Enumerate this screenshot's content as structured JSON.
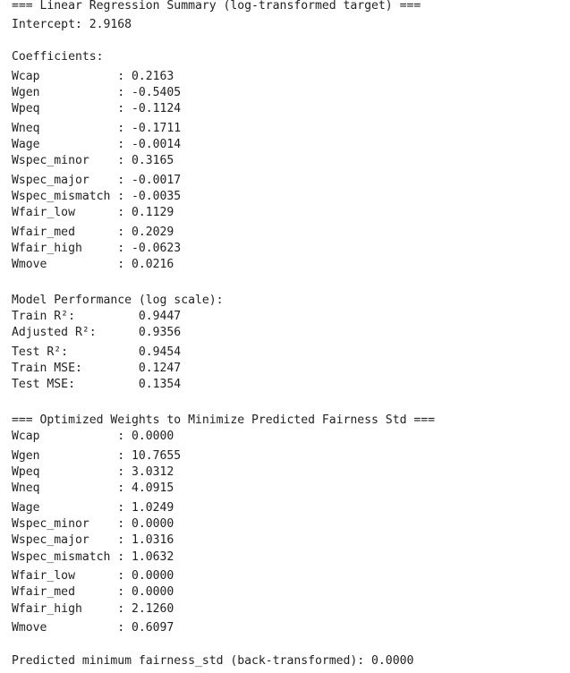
{
  "lines": {
    "header1": "=== Linear Regression Summary (log-transformed target) ===",
    "intercept": "Intercept: 2.9168",
    "coef_header": "Coefficients:",
    "c_wcap": "Wcap           : 0.2163",
    "c_wgen": "Wgen           : -0.5405",
    "c_wpeq": "Wpeq           : -0.1124",
    "c_wneq": "Wneq           : -0.1711",
    "c_wage": "Wage           : -0.0014",
    "c_wspec_minor": "Wspec_minor    : 0.3165",
    "c_wspec_major": "Wspec_major    : -0.0017",
    "c_wspec_mismatch": "Wspec_mismatch : -0.0035",
    "c_wfair_low": "Wfair_low      : 0.1129",
    "c_wfair_med": "Wfair_med      : 0.2029",
    "c_wfair_high": "Wfair_high     : -0.0623",
    "c_wmove": "Wmove          : 0.0216",
    "perf_header": "Model Performance (log scale):",
    "train_r2": "Train R²:         0.9447",
    "adj_r2": "Adjusted R²:      0.9356",
    "test_r2": "Test R²:          0.9454",
    "train_mse": "Train MSE:        0.1247",
    "test_mse": "Test MSE:         0.1354",
    "header2": "=== Optimized Weights to Minimize Predicted Fairness Std ===",
    "o_wcap": "Wcap           : 0.0000",
    "o_wgen": "Wgen           : 10.7655",
    "o_wpeq": "Wpeq           : 3.0312",
    "o_wneq": "Wneq           : 4.0915",
    "o_wage": "Wage           : 1.0249",
    "o_wspec_minor": "Wspec_minor    : 0.0000",
    "o_wspec_major": "Wspec_major    : 1.0316",
    "o_wspec_mismatch": "Wspec_mismatch : 1.0632",
    "o_wfair_low": "Wfair_low      : 0.0000",
    "o_wfair_med": "Wfair_med      : 0.0000",
    "o_wfair_high": "Wfair_high     : 2.1260",
    "o_wmove": "Wmove          : 0.6097",
    "final": "Predicted minimum fairness_std (back-transformed): 0.0000"
  }
}
